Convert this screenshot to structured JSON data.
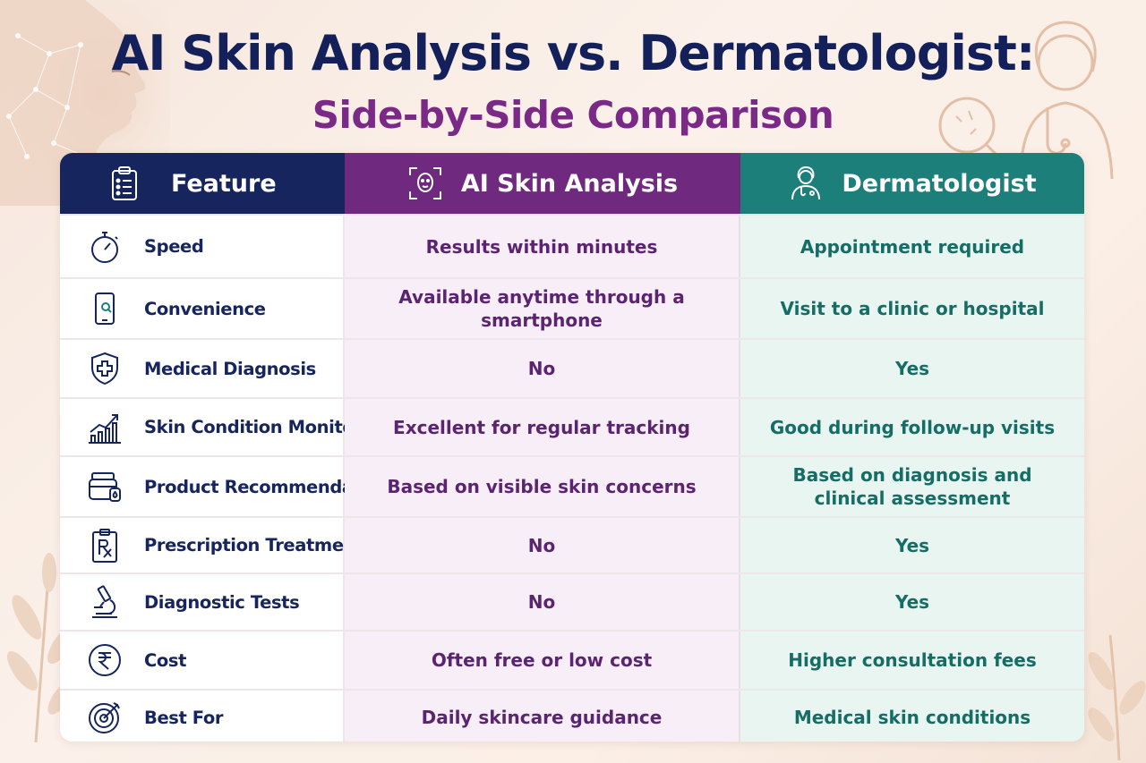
{
  "title": "AI Skin Analysis vs. Dermatologist:",
  "subtitle": "Side-by-Side Comparison",
  "headers": {
    "feature": "Feature",
    "ai": "AI Skin Analysis",
    "derm": "Dermatologist"
  },
  "colors": {
    "navy": "#16255e",
    "purple": "#6f2a80",
    "teal": "#1c7f7a"
  },
  "rows": [
    {
      "icon": "stopwatch-icon",
      "feature": "Speed",
      "ai": "Results within minutes",
      "derm": "Appointment required"
    },
    {
      "icon": "smartphone-icon",
      "feature": "Convenience",
      "ai": "Available anytime through a smartphone",
      "derm": "Visit to a clinic or hospital"
    },
    {
      "icon": "medical-shield-icon",
      "feature": "Medical Diagnosis",
      "ai": "No",
      "derm": "Yes"
    },
    {
      "icon": "trend-chart-icon",
      "feature": "Skin Condition Monitoring",
      "ai": "Excellent for regular tracking",
      "derm": "Good during follow-up visits"
    },
    {
      "icon": "product-jar-icon",
      "feature": "Product Recommendations",
      "ai": "Based on visible skin concerns",
      "derm": "Based on diagnosis and\nclinical assessment"
    },
    {
      "icon": "prescription-icon",
      "feature": "Prescription Treatment",
      "ai": "No",
      "derm": "Yes"
    },
    {
      "icon": "microscope-icon",
      "feature": "Diagnostic Tests",
      "ai": "No",
      "derm": "Yes"
    },
    {
      "icon": "rupee-icon",
      "feature": "Cost",
      "ai": "Often free or low cost",
      "derm": "Higher consultation fees"
    },
    {
      "icon": "target-icon",
      "feature": "Best For",
      "ai": "Daily skincare guidance",
      "derm": "Medical skin conditions"
    }
  ]
}
